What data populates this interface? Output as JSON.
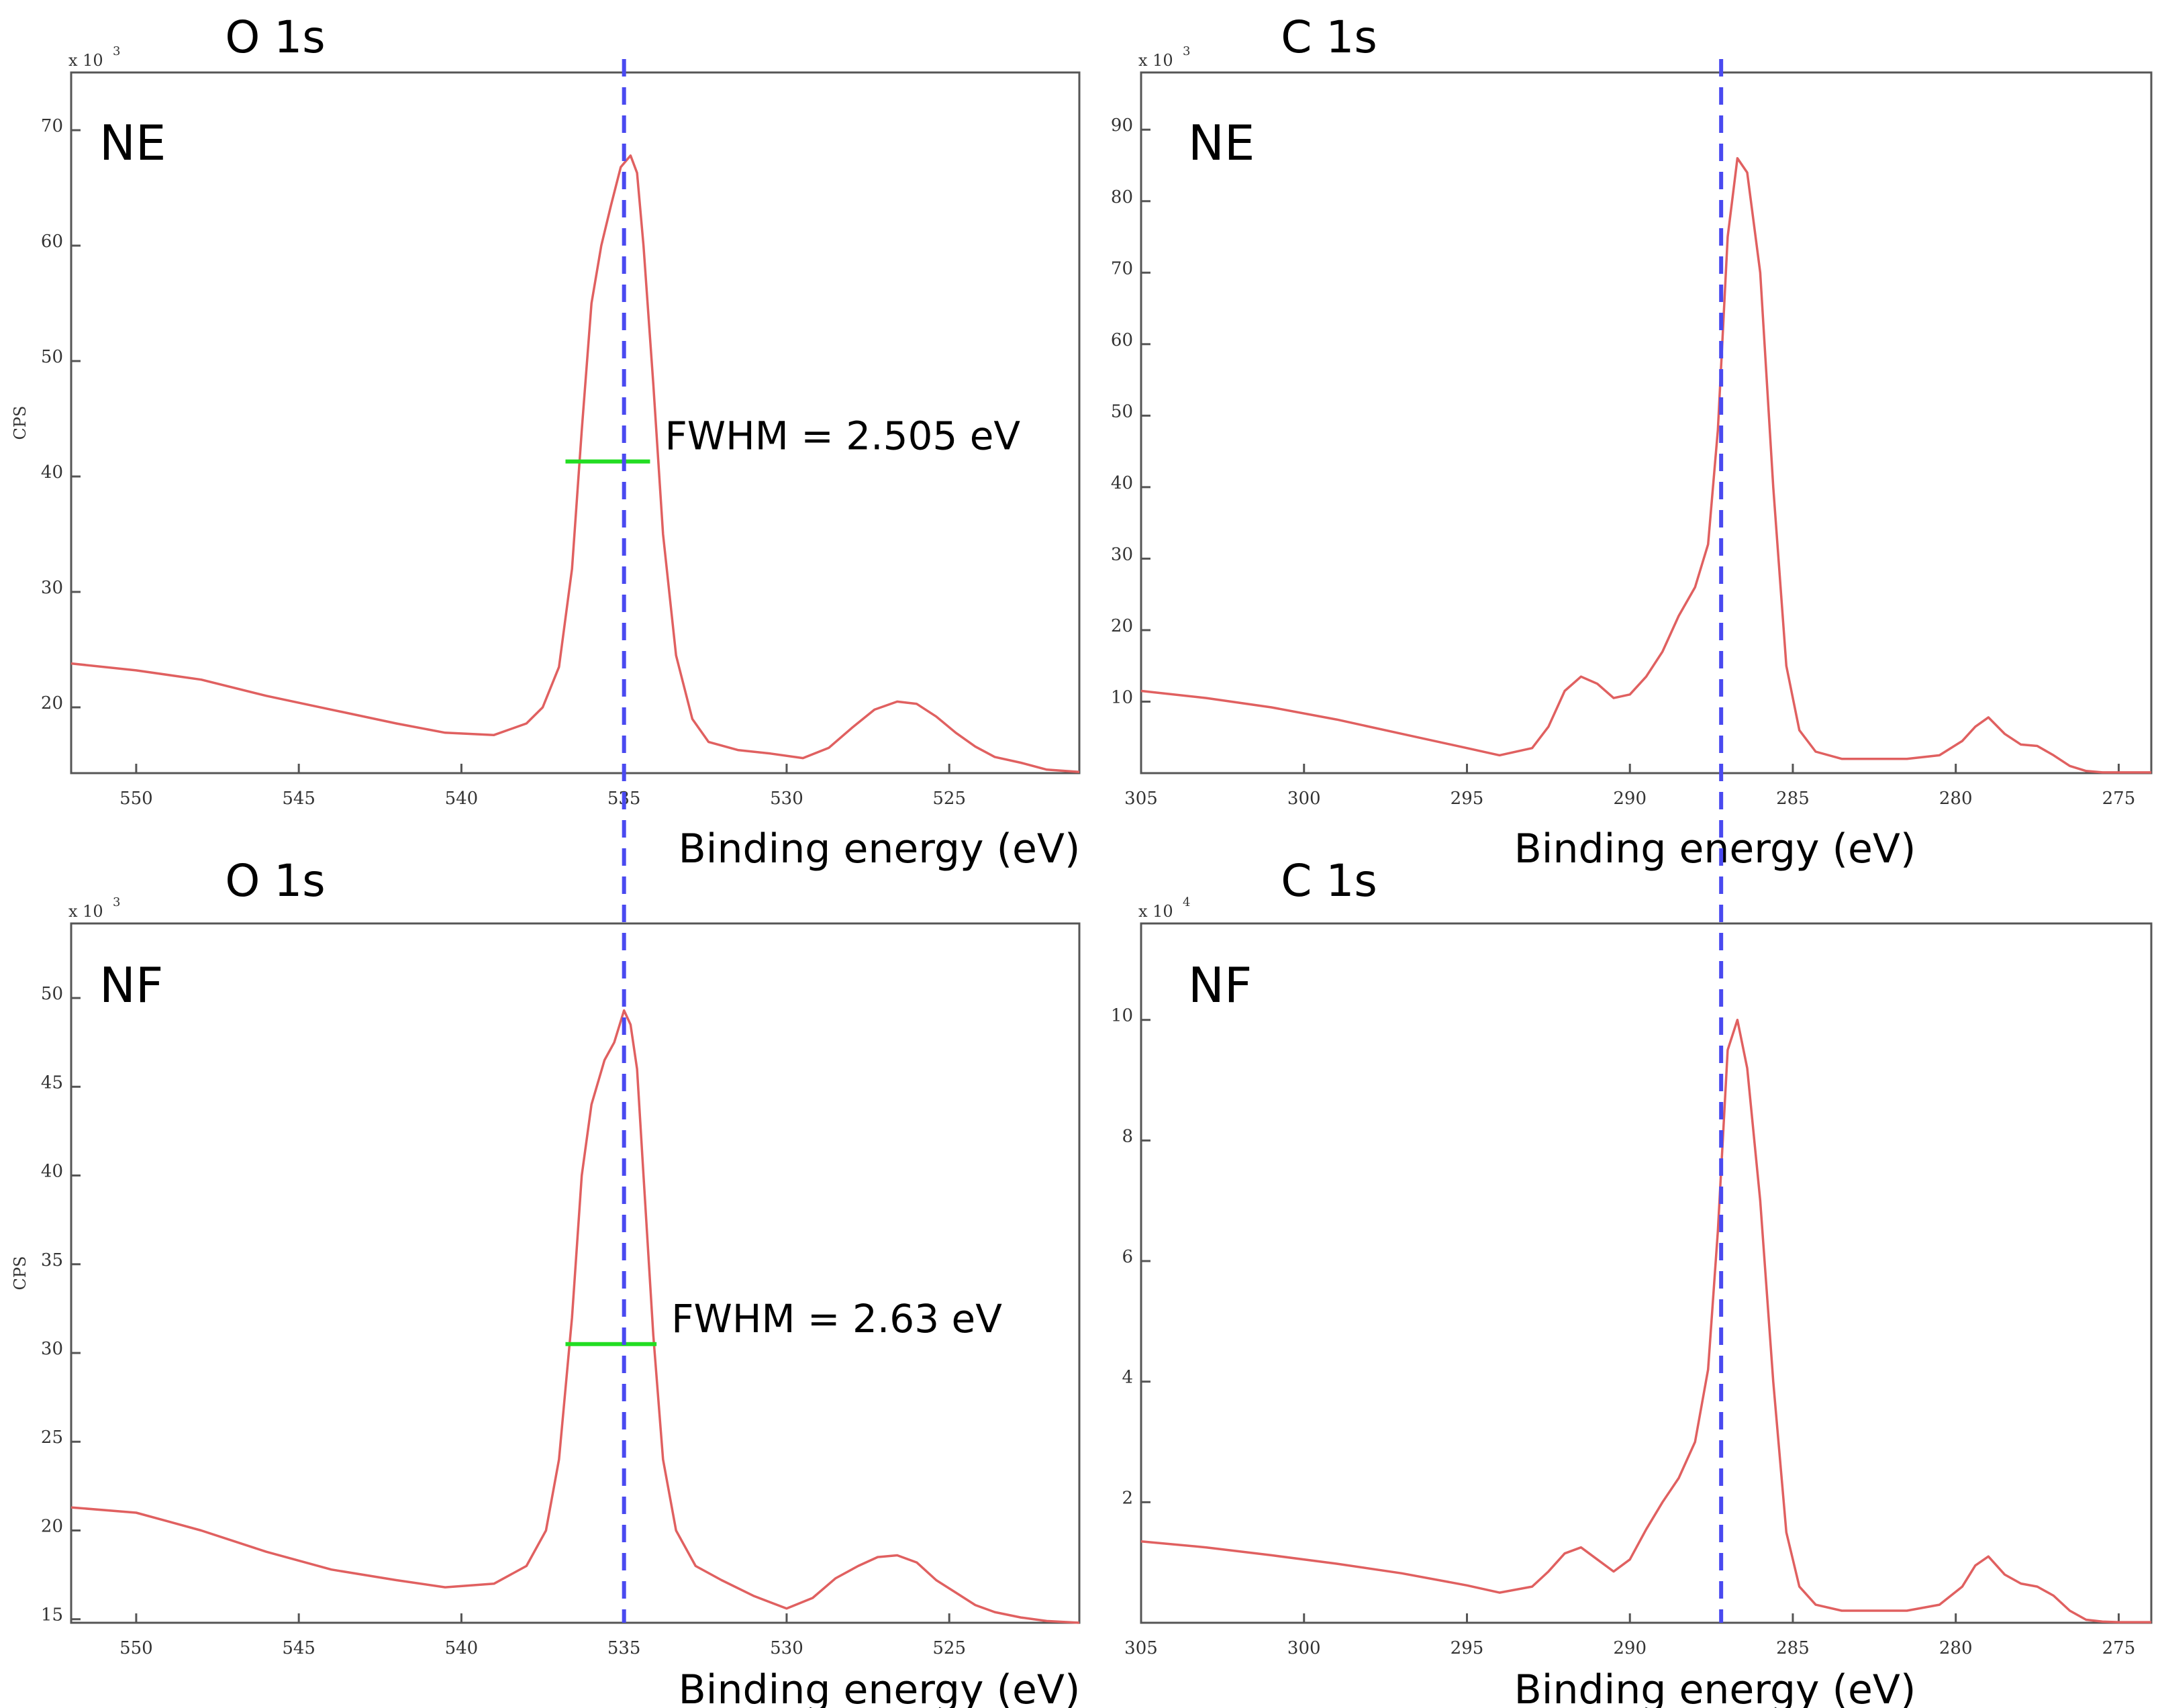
{
  "figure": {
    "xlabel": "Binding energy (eV)",
    "ylabel": "CPS",
    "colors": {
      "spectrum": "#e06060",
      "reference_line": "#4a4af0",
      "fwhm_marker": "#22dd22",
      "frame": "#555555",
      "text": "#000000"
    }
  },
  "chart_data": [
    {
      "id": "o1s-ne",
      "type": "line",
      "title": "O 1s",
      "sample_label": "NE",
      "ylabel": "CPS",
      "xlabel": "Binding energy (eV)",
      "y_multiplier": "x 10",
      "y_exponent": "3",
      "xlim": [
        552,
        521
      ],
      "ylim": [
        14.3,
        75
      ],
      "xticks": [
        550,
        545,
        540,
        535,
        530,
        525
      ],
      "yticks": [
        20,
        30,
        40,
        50,
        60,
        70
      ],
      "grid": false,
      "x": [
        552,
        550,
        548,
        546,
        544,
        542,
        540.5,
        539,
        538,
        537.5,
        537,
        536.6,
        536.3,
        536,
        535.7,
        535.4,
        535.1,
        534.8,
        534.6,
        534.4,
        534.1,
        533.8,
        533.4,
        532.9,
        532.4,
        531.5,
        530.5,
        529.5,
        528.7,
        528,
        527.3,
        526.6,
        526,
        525.4,
        524.8,
        524.2,
        523.6,
        522.8,
        522,
        521
      ],
      "values": [
        23.8,
        23.2,
        22.4,
        21.0,
        19.8,
        18.6,
        17.8,
        17.6,
        18.6,
        20.0,
        23.5,
        32.0,
        44.0,
        55.0,
        60.0,
        63.5,
        66.8,
        67.8,
        66.3,
        60.0,
        48.0,
        35.0,
        24.5,
        19.0,
        17.0,
        16.3,
        16.0,
        15.6,
        16.5,
        18.2,
        19.8,
        20.5,
        20.3,
        19.2,
        17.8,
        16.6,
        15.7,
        15.2,
        14.6,
        14.4
      ],
      "reference_line_x": 535,
      "fwhm": {
        "label": "FWHM = 2.505 eV",
        "x_start": 536.8,
        "x_end": 534.2,
        "y": 41.3
      }
    },
    {
      "id": "c1s-ne",
      "type": "line",
      "title": "C 1s",
      "sample_label": "NE",
      "ylabel": "",
      "xlabel": "Binding energy (eV)",
      "y_multiplier": "x 10",
      "y_exponent": "3",
      "xlim": [
        305,
        274
      ],
      "ylim": [
        0,
        98
      ],
      "xticks": [
        305,
        300,
        295,
        290,
        285,
        280,
        275
      ],
      "yticks": [
        10,
        20,
        30,
        40,
        50,
        60,
        70,
        80,
        90
      ],
      "grid": false,
      "x": [
        305,
        303,
        301,
        299,
        297,
        295,
        294,
        293,
        292.5,
        292,
        291.5,
        291,
        290.5,
        290,
        289.5,
        289,
        288.5,
        288,
        287.6,
        287.3,
        287,
        286.7,
        286.4,
        286,
        285.6,
        285.2,
        284.8,
        284.3,
        283.5,
        282.5,
        281.5,
        280.5,
        279.8,
        279.4,
        279,
        278.5,
        278,
        277.5,
        277,
        276.5,
        276,
        275.5,
        275,
        274
      ],
      "values": [
        11.5,
        10.5,
        9.2,
        7.5,
        5.5,
        3.5,
        2.5,
        3.5,
        6.5,
        11.5,
        13.5,
        12.5,
        10.5,
        11.0,
        13.5,
        17.0,
        22.0,
        26.0,
        32.0,
        48.0,
        75.0,
        86.0,
        84.0,
        70.0,
        40.0,
        15.0,
        6.0,
        3.0,
        2.0,
        2.0,
        2.0,
        2.5,
        4.5,
        6.5,
        7.8,
        5.5,
        4.0,
        3.8,
        2.5,
        1.0,
        0.3,
        0.1,
        0.1,
        0.1
      ],
      "reference_line_x": 287.2
    },
    {
      "id": "o1s-nf",
      "type": "line",
      "title": "O 1s",
      "sample_label": "NF",
      "ylabel": "CPS",
      "xlabel": "Binding energy (eV)",
      "y_multiplier": "x 10",
      "y_exponent": "3",
      "xlim": [
        552,
        521
      ],
      "ylim": [
        14.8,
        54.2
      ],
      "xticks": [
        550,
        545,
        540,
        535,
        530,
        525
      ],
      "yticks": [
        15,
        20,
        25,
        30,
        35,
        40,
        45,
        50
      ],
      "grid": false,
      "x": [
        552,
        550,
        548,
        546,
        544,
        542,
        540.5,
        539,
        538,
        537.4,
        537,
        536.6,
        536.3,
        536,
        535.6,
        535.3,
        535,
        534.8,
        534.6,
        534.4,
        534.1,
        533.8,
        533.4,
        532.8,
        532,
        531,
        530,
        529.2,
        528.5,
        527.8,
        527.2,
        526.6,
        526,
        525.4,
        524.8,
        524.2,
        523.6,
        522.8,
        522,
        521
      ],
      "values": [
        21.3,
        21.0,
        20.0,
        18.8,
        17.8,
        17.2,
        16.8,
        17.0,
        18.0,
        20.0,
        24.0,
        32.0,
        40.0,
        44.0,
        46.5,
        47.5,
        49.3,
        48.5,
        46.0,
        40.0,
        31.0,
        24.0,
        20.0,
        18.0,
        17.2,
        16.3,
        15.6,
        16.2,
        17.3,
        18.0,
        18.5,
        18.6,
        18.2,
        17.2,
        16.5,
        15.8,
        15.4,
        15.1,
        14.9,
        14.8
      ],
      "reference_line_x": 535,
      "fwhm": {
        "label": "FWHM = 2.63 eV",
        "x_start": 536.8,
        "x_end": 534.0,
        "y": 30.5
      }
    },
    {
      "id": "c1s-nf",
      "type": "line",
      "title": "C 1s",
      "sample_label": "NF",
      "ylabel": "",
      "xlabel": "Binding energy (eV)",
      "y_multiplier": "x 10",
      "y_exponent": "4",
      "xlim": [
        305,
        274
      ],
      "ylim": [
        0,
        11.6
      ],
      "xticks": [
        305,
        300,
        295,
        290,
        285,
        280,
        275
      ],
      "yticks": [
        2,
        4,
        6,
        8,
        10
      ],
      "grid": false,
      "x": [
        305,
        303,
        301,
        299,
        297,
        295,
        294,
        293,
        292.5,
        292,
        291.5,
        291,
        290.5,
        290,
        289.5,
        289,
        288.5,
        288,
        287.6,
        287.3,
        287,
        286.7,
        286.4,
        286,
        285.6,
        285.2,
        284.8,
        284.3,
        283.5,
        282.5,
        281.5,
        280.5,
        279.8,
        279.4,
        279,
        278.5,
        278,
        277.5,
        277,
        276.5,
        276,
        275.5,
        275,
        274
      ],
      "values": [
        1.35,
        1.25,
        1.12,
        0.98,
        0.82,
        0.62,
        0.5,
        0.6,
        0.85,
        1.15,
        1.25,
        1.05,
        0.85,
        1.05,
        1.55,
        2.0,
        2.4,
        3.0,
        4.2,
        6.5,
        9.5,
        10.0,
        9.2,
        7.0,
        4.0,
        1.5,
        0.6,
        0.3,
        0.2,
        0.2,
        0.2,
        0.3,
        0.6,
        0.95,
        1.1,
        0.8,
        0.65,
        0.6,
        0.45,
        0.2,
        0.05,
        0.02,
        0.01,
        0.01
      ],
      "reference_line_x": 287.2
    }
  ]
}
